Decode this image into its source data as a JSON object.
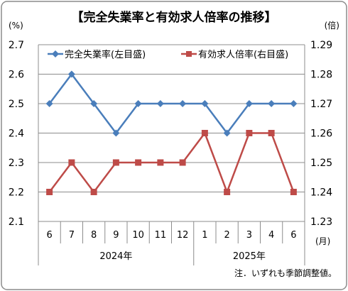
{
  "chart_data": {
    "type": "line",
    "title": "【完全失業率と有効求人倍率の推移】",
    "left_unit": "(%)",
    "right_unit": "(倍)",
    "x_unit": "(月)",
    "categories": [
      "6",
      "7",
      "8",
      "9",
      "10",
      "11",
      "12",
      "1",
      "2",
      "3",
      "4",
      "6"
    ],
    "year_groups": [
      {
        "label": "2024年",
        "from": 0,
        "to": 6
      },
      {
        "label": "2025年",
        "from": 7,
        "to": 11
      }
    ],
    "left_axis": {
      "min": 2.1,
      "max": 2.7,
      "step": 0.1,
      "ticks": [
        "2.1",
        "2.2",
        "2.3",
        "2.4",
        "2.5",
        "2.6",
        "2.7"
      ]
    },
    "right_axis": {
      "min": 1.23,
      "max": 1.29,
      "step": 0.01,
      "ticks": [
        "1.23",
        "1.24",
        "1.25",
        "1.26",
        "1.27",
        "1.28",
        "1.29"
      ]
    },
    "grid": true,
    "legend_position": "top",
    "series": [
      {
        "name": "完全失業率(左目盛)",
        "axis": "left",
        "color": "#4a7ebb",
        "marker": "diamond",
        "values": [
          2.5,
          2.6,
          2.5,
          2.4,
          2.5,
          2.5,
          2.5,
          2.5,
          2.4,
          2.5,
          2.5,
          2.5
        ]
      },
      {
        "name": "有効求人倍率(右目盛)",
        "axis": "right",
        "color": "#be4b48",
        "marker": "square",
        "values": [
          1.24,
          1.25,
          1.24,
          1.25,
          1.25,
          1.25,
          1.25,
          1.26,
          1.24,
          1.26,
          1.26,
          1.24
        ]
      }
    ],
    "note": "注．いずれも季節調整値。"
  }
}
